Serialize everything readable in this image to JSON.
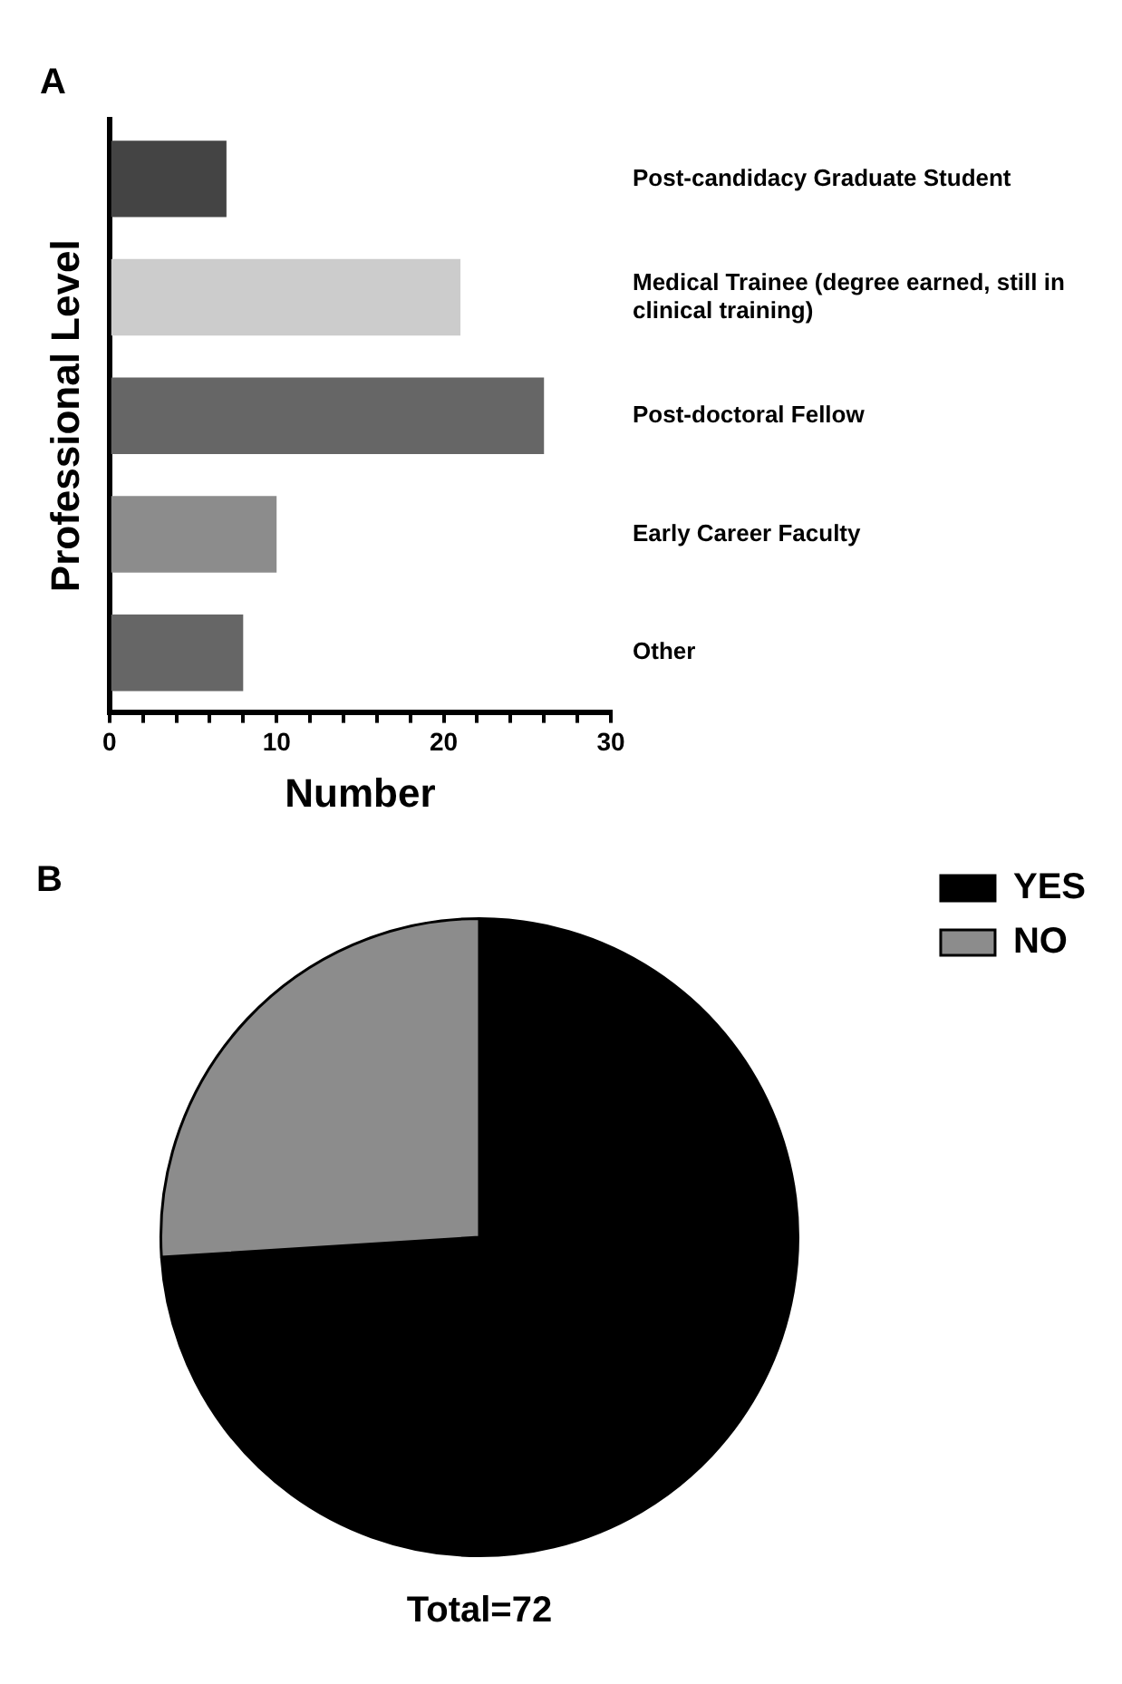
{
  "chart_data": [
    {
      "type": "bar",
      "title": "A",
      "orientation": "horizontal",
      "categories": [
        "Post-candidacy Graduate Student",
        "Medical Trainee (degree earned, still in clinical training)",
        "Post-doctoral Fellow",
        "Early Career Faculty",
        "Other"
      ],
      "values": [
        7,
        21,
        26,
        10,
        8
      ],
      "colors": [
        "#444444",
        "#cccccc",
        "#666666",
        "#8c8c8c",
        "#666666"
      ],
      "xlim": [
        0,
        30
      ],
      "xticks": [
        0,
        {
          "value": 2,
          "label": null
        },
        {
          "value": 4,
          "label": null
        },
        {
          "value": 6,
          "label": null
        },
        {
          "value": 8,
          "label": null
        },
        10,
        {
          "value": 12,
          "label": null
        },
        {
          "value": 14,
          "label": null
        },
        {
          "value": 16,
          "label": null
        },
        {
          "value": 18,
          "label": null
        },
        20,
        {
          "value": 22,
          "label": null
        },
        {
          "value": 24,
          "label": null
        },
        {
          "value": 26,
          "label": null
        },
        {
          "value": 28,
          "label": null
        },
        30
      ],
      "xlabel": "Number",
      "ylabel": "Professional Level"
    },
    {
      "type": "pie",
      "title": "B",
      "categories": [
        "YES",
        "NO"
      ],
      "values": [
        74,
        26
      ],
      "colors": [
        "#000000",
        "#8c8c8c"
      ],
      "legend": "top right",
      "annotations": [
        "Total=72"
      ]
    }
  ]
}
